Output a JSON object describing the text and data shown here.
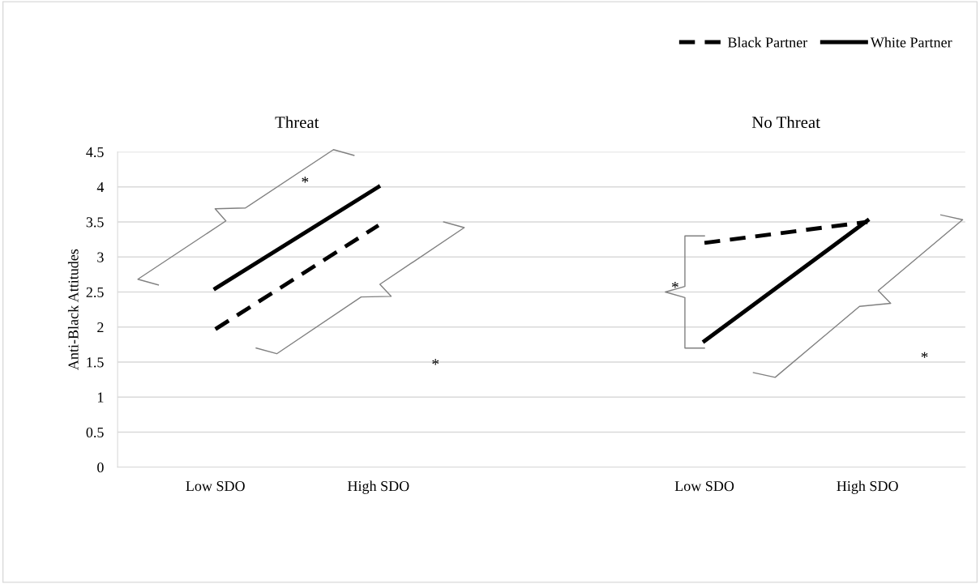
{
  "chart_data": {
    "type": "line",
    "ylabel": "Anti-Black Attitudes",
    "categories": [
      "Low SDO",
      "High SDO",
      null,
      "Low SDO",
      "High SDO"
    ],
    "series": [
      {
        "name": "Black Partner",
        "color": "#000000",
        "line_style": "dashed",
        "values": [
          1.97,
          3.45,
          null,
          3.2,
          3.5
        ]
      },
      {
        "name": "White Partner",
        "color": "#000000",
        "line_style": "solid",
        "values": [
          2.55,
          4.0,
          null,
          1.8,
          3.52
        ]
      }
    ],
    "ylim": [
      0,
      4.5
    ],
    "yticks": [
      0,
      0.5,
      1,
      1.5,
      2,
      2.5,
      3,
      3.5,
      4,
      4.5
    ],
    "grid": "y",
    "legend": "top right",
    "marker": "none",
    "annotations": [
      "Threat",
      "No Threat",
      "*",
      "*",
      "*",
      "*"
    ]
  }
}
